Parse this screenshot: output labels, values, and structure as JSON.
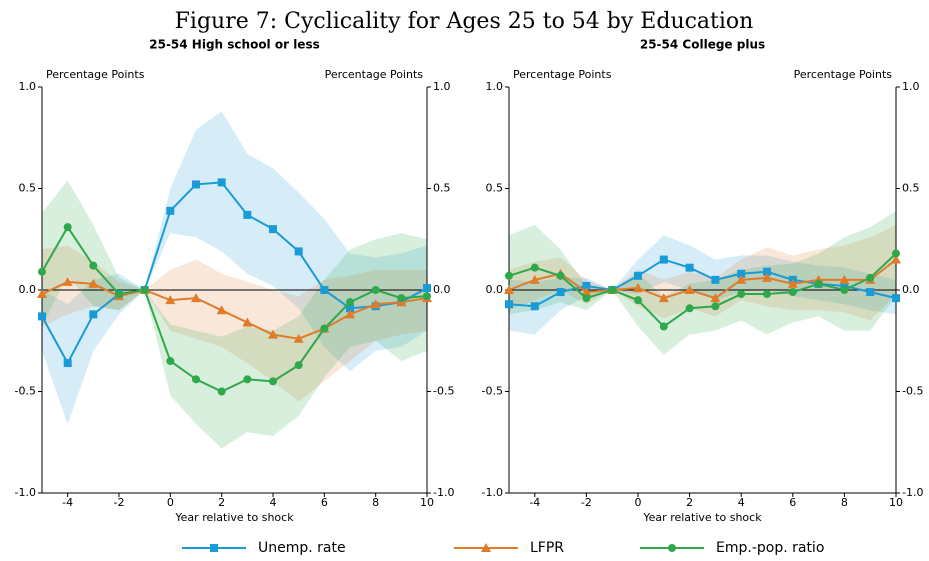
{
  "title": "Figure 7: Cyclicality for Ages 25 to 54 by Education",
  "chart_data": [
    {
      "type": "line",
      "title": "25-54 High school or less",
      "x_label": "Year relative to shock",
      "y_label": "Percentage Points",
      "x": [
        -5,
        -4,
        -3,
        -2,
        -1,
        0,
        1,
        2,
        3,
        4,
        5,
        6,
        7,
        8,
        9,
        10
      ],
      "xlim": [
        -5,
        10
      ],
      "xticks": [
        -4,
        -2,
        0,
        2,
        4,
        6,
        8,
        10
      ],
      "ylim": [
        -1,
        1
      ],
      "yticks": [
        {
          "value": -1,
          "label": "-1.0"
        },
        -0.5,
        {
          "value": 0,
          "label": "0.0"
        },
        0.5,
        {
          "value": 1,
          "label": "1.0"
        }
      ],
      "series": [
        {
          "name": "Unemp. rate",
          "color": "#1a9ad6",
          "marker": "square",
          "values": [
            -0.13,
            -0.36,
            -0.12,
            -0.02,
            0,
            0.39,
            0.52,
            0.53,
            0.37,
            0.3,
            0.19,
            0.0,
            -0.09,
            -0.08,
            -0.06,
            0.01
          ],
          "ci_upper": [
            0.0,
            -0.07,
            0.05,
            0.08,
            0,
            0.5,
            0.79,
            0.88,
            0.67,
            0.6,
            0.48,
            0.35,
            0.18,
            0.16,
            0.18,
            0.22
          ],
          "ci_lower": [
            -0.3,
            -0.66,
            -0.3,
            -0.12,
            0,
            0.28,
            0.26,
            0.19,
            0.08,
            0.02,
            -0.09,
            -0.28,
            -0.4,
            -0.3,
            -0.28,
            -0.2
          ]
        },
        {
          "name": "LFPR",
          "color": "#e07b2a",
          "marker": "triangle",
          "values": [
            -0.02,
            0.04,
            0.03,
            -0.03,
            0,
            -0.05,
            -0.04,
            -0.1,
            -0.16,
            -0.22,
            -0.24,
            -0.19,
            -0.12,
            -0.07,
            -0.06,
            -0.04
          ],
          "ci_upper": [
            0.2,
            0.22,
            0.14,
            0.04,
            0,
            0.1,
            0.15,
            0.08,
            0.04,
            0.0,
            -0.03,
            0.05,
            0.07,
            0.1,
            0.1,
            0.1
          ],
          "ci_lower": [
            -0.18,
            -0.12,
            -0.08,
            -0.1,
            0,
            -0.2,
            -0.24,
            -0.28,
            -0.36,
            -0.45,
            -0.55,
            -0.45,
            -0.35,
            -0.25,
            -0.22,
            -0.2
          ]
        },
        {
          "name": "Emp.-pop. ratio",
          "color": "#2ea84a",
          "marker": "circle",
          "values": [
            0.09,
            0.31,
            0.12,
            -0.02,
            0,
            -0.35,
            -0.44,
            -0.5,
            -0.44,
            -0.45,
            -0.37,
            -0.19,
            -0.06,
            0.0,
            -0.04,
            -0.03
          ],
          "ci_upper": [
            0.38,
            0.54,
            0.32,
            0.06,
            0,
            -0.17,
            -0.2,
            -0.23,
            -0.18,
            -0.2,
            -0.13,
            0.05,
            0.2,
            0.25,
            0.28,
            0.25
          ],
          "ci_lower": [
            -0.18,
            0.07,
            -0.08,
            -0.1,
            0,
            -0.52,
            -0.66,
            -0.78,
            -0.7,
            -0.72,
            -0.62,
            -0.43,
            -0.28,
            -0.25,
            -0.35,
            -0.3
          ]
        }
      ]
    },
    {
      "type": "line",
      "title": "25-54 College plus",
      "x_label": "Year relative to shock",
      "y_label": "Percentage Points",
      "x": [
        -5,
        -4,
        -3,
        -2,
        -1,
        0,
        1,
        2,
        3,
        4,
        5,
        6,
        7,
        8,
        9,
        10
      ],
      "xlim": [
        -5,
        10
      ],
      "xticks": [
        -4,
        -2,
        0,
        2,
        4,
        6,
        8,
        10
      ],
      "ylim": [
        -1,
        1
      ],
      "yticks": [
        {
          "value": -1,
          "label": "-1.0"
        },
        -0.5,
        {
          "value": 0,
          "label": "0.0"
        },
        0.5,
        {
          "value": 1,
          "label": "1.0"
        }
      ],
      "series": [
        {
          "name": "Unemp. rate",
          "color": "#1a9ad6",
          "marker": "square",
          "values": [
            -0.07,
            -0.08,
            -0.01,
            0.02,
            0,
            0.07,
            0.15,
            0.11,
            0.05,
            0.08,
            0.09,
            0.05,
            0.03,
            0.02,
            -0.01,
            -0.04
          ],
          "ci_upper": [
            0.05,
            0.04,
            0.06,
            0.06,
            0,
            0.15,
            0.27,
            0.22,
            0.15,
            0.17,
            0.17,
            0.14,
            0.12,
            0.11,
            0.08,
            0.05
          ],
          "ci_lower": [
            -0.2,
            -0.22,
            -0.1,
            -0.03,
            0,
            -0.02,
            0.04,
            0.0,
            -0.05,
            -0.01,
            0,
            -0.03,
            -0.05,
            -0.07,
            -0.1,
            -0.12
          ]
        },
        {
          "name": "LFPR",
          "color": "#e07b2a",
          "marker": "triangle",
          "values": [
            0.0,
            0.05,
            0.08,
            -0.01,
            0,
            0.01,
            -0.04,
            0.0,
            -0.04,
            0.05,
            0.06,
            0.03,
            0.05,
            0.05,
            0.05,
            0.15
          ],
          "ci_upper": [
            0.1,
            0.14,
            0.16,
            0.05,
            0,
            0.1,
            0.05,
            0.09,
            0.06,
            0.15,
            0.21,
            0.17,
            0.2,
            0.22,
            0.26,
            0.32
          ],
          "ci_lower": [
            -0.1,
            -0.05,
            0.0,
            -0.07,
            0,
            -0.08,
            -0.14,
            -0.09,
            -0.13,
            -0.05,
            -0.08,
            -0.1,
            -0.1,
            -0.11,
            -0.15,
            -0.02
          ]
        },
        {
          "name": "Emp.-pop. ratio",
          "color": "#2ea84a",
          "marker": "circle",
          "values": [
            0.07,
            0.11,
            0.07,
            -0.04,
            0,
            -0.05,
            -0.18,
            -0.09,
            -0.08,
            -0.02,
            -0.02,
            -0.01,
            0.03,
            0.0,
            0.06,
            0.18
          ],
          "ci_upper": [
            0.27,
            0.32,
            0.2,
            0.02,
            0,
            0.08,
            -0.03,
            0.03,
            0.05,
            0.1,
            0.12,
            0.13,
            0.18,
            0.26,
            0.31,
            0.39
          ],
          "ci_lower": [
            -0.12,
            -0.1,
            -0.06,
            -0.1,
            0,
            -0.18,
            -0.32,
            -0.22,
            -0.2,
            -0.15,
            -0.22,
            -0.16,
            -0.13,
            -0.2,
            -0.2,
            -0.03
          ]
        }
      ]
    }
  ]
}
